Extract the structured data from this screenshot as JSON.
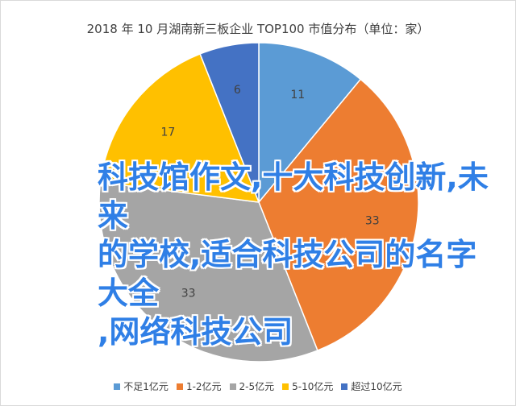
{
  "chart_data": {
    "type": "pie",
    "title": "2018 年 10 月湖南新三板企业 TOP100 市值分布（单位：家）",
    "categories": [
      "不足1亿元",
      "1-2亿元",
      "2-5亿元",
      "5-10亿元",
      "超过10亿元"
    ],
    "values": [
      11,
      33,
      33,
      17,
      6
    ],
    "colors": [
      "#5b9bd5",
      "#ed7d31",
      "#a5a5a5",
      "#ffc000",
      "#4472c4"
    ],
    "legend_position": "bottom",
    "start_order": [
      "不足1亿元",
      "1-2亿元",
      "2-5亿元",
      "5-10亿元",
      "超过10亿元"
    ]
  },
  "overlay": {
    "lines": [
      "科技馆作文,十大科技创新,未来",
      "的学校,适合科技公司的名字大全",
      ",网络科技公司"
    ]
  }
}
